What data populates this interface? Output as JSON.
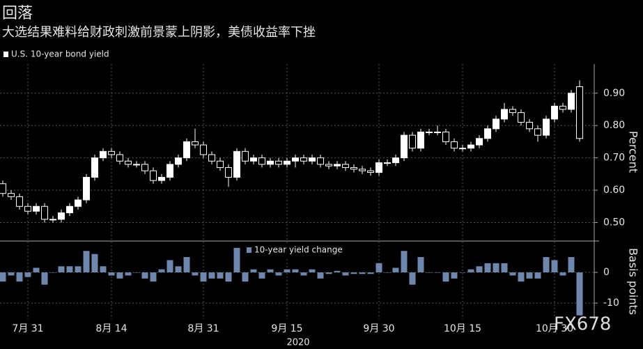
{
  "chart_data": [
    {
      "type": "candlestick",
      "title": "回落",
      "subtitle": "大选结果难料给财政刺激前景蒙上阴影，美债收益率下挫",
      "legend": "U.S. 10-year bond yield",
      "ylabel": "Percent",
      "grid": true,
      "up_color": "#ffffff",
      "down_color": "#000000",
      "categories": [
        null,
        null,
        null,
        "7月 31",
        null,
        null,
        null,
        null,
        null,
        null,
        null,
        null,
        null,
        "8月 14",
        null,
        null,
        null,
        null,
        null,
        null,
        null,
        null,
        null,
        null,
        "8月 31",
        null,
        null,
        null,
        null,
        null,
        null,
        null,
        null,
        null,
        "9月 15",
        null,
        null,
        null,
        null,
        null,
        null,
        null,
        null,
        null,
        null,
        "9月 30",
        null,
        null,
        null,
        null,
        null,
        null,
        null,
        null,
        null,
        "10月 15",
        null,
        null,
        null,
        null,
        null,
        null,
        null,
        null,
        null,
        null,
        "10月 30",
        null,
        null,
        null
      ],
      "open": [
        0.62,
        0.59,
        0.58,
        0.55,
        0.535,
        0.55,
        0.51,
        0.51,
        0.53,
        0.55,
        0.57,
        0.64,
        0.7,
        0.72,
        0.71,
        0.69,
        0.68,
        0.68,
        0.66,
        0.63,
        0.64,
        0.68,
        0.7,
        0.75,
        0.74,
        0.71,
        0.69,
        0.67,
        0.64,
        0.72,
        0.69,
        0.7,
        0.68,
        0.69,
        0.68,
        0.69,
        0.7,
        0.69,
        0.7,
        0.68,
        0.675,
        0.68,
        0.67,
        0.665,
        0.66,
        0.655,
        0.685,
        0.685,
        0.7,
        0.77,
        0.73,
        0.78,
        0.78,
        0.78,
        0.75,
        0.73,
        0.73,
        0.74,
        0.76,
        0.79,
        0.82,
        0.85,
        0.84,
        0.81,
        0.79,
        0.77,
        0.82,
        0.86,
        0.85,
        0.92
      ],
      "high": [
        0.63,
        0.6,
        0.59,
        0.56,
        0.56,
        0.56,
        0.52,
        0.54,
        0.56,
        0.58,
        0.65,
        0.71,
        0.73,
        0.73,
        0.72,
        0.7,
        0.69,
        0.69,
        0.67,
        0.65,
        0.69,
        0.71,
        0.76,
        0.79,
        0.75,
        0.72,
        0.7,
        0.68,
        0.73,
        0.73,
        0.71,
        0.71,
        0.7,
        0.7,
        0.7,
        0.71,
        0.71,
        0.71,
        0.71,
        0.69,
        0.69,
        0.69,
        0.68,
        0.675,
        0.67,
        0.695,
        0.695,
        0.71,
        0.78,
        0.78,
        0.79,
        0.79,
        0.8,
        0.79,
        0.76,
        0.74,
        0.75,
        0.77,
        0.8,
        0.83,
        0.87,
        0.86,
        0.85,
        0.82,
        0.8,
        0.83,
        0.87,
        0.87,
        0.91,
        0.94
      ],
      "low": [
        0.58,
        0.57,
        0.54,
        0.525,
        0.525,
        0.5,
        0.5,
        0.5,
        0.52,
        0.54,
        0.56,
        0.63,
        0.69,
        0.7,
        0.68,
        0.67,
        0.67,
        0.65,
        0.62,
        0.62,
        0.63,
        0.67,
        0.69,
        0.73,
        0.7,
        0.68,
        0.66,
        0.61,
        0.63,
        0.68,
        0.68,
        0.67,
        0.67,
        0.67,
        0.67,
        0.67,
        0.68,
        0.68,
        0.67,
        0.665,
        0.665,
        0.66,
        0.655,
        0.65,
        0.645,
        0.645,
        0.675,
        0.675,
        0.69,
        0.72,
        0.72,
        0.77,
        0.77,
        0.74,
        0.72,
        0.72,
        0.72,
        0.73,
        0.75,
        0.78,
        0.81,
        0.83,
        0.8,
        0.78,
        0.75,
        0.76,
        0.81,
        0.84,
        0.84,
        0.75
      ],
      "close": [
        0.59,
        0.58,
        0.55,
        0.535,
        0.55,
        0.51,
        0.51,
        0.53,
        0.55,
        0.57,
        0.64,
        0.7,
        0.72,
        0.71,
        0.69,
        0.68,
        0.68,
        0.66,
        0.63,
        0.64,
        0.68,
        0.7,
        0.75,
        0.74,
        0.71,
        0.69,
        0.67,
        0.64,
        0.72,
        0.69,
        0.7,
        0.68,
        0.69,
        0.68,
        0.69,
        0.7,
        0.69,
        0.7,
        0.68,
        0.675,
        0.68,
        0.67,
        0.665,
        0.66,
        0.655,
        0.685,
        0.685,
        0.7,
        0.77,
        0.73,
        0.78,
        0.78,
        0.78,
        0.75,
        0.73,
        0.73,
        0.74,
        0.76,
        0.79,
        0.82,
        0.85,
        0.84,
        0.81,
        0.79,
        0.77,
        0.82,
        0.86,
        0.85,
        0.9,
        0.76
      ],
      "ylim": [
        0.445,
        0.99
      ],
      "yticks": [
        {
          "value": 0.5,
          "label": "0.50"
        },
        {
          "value": 0.6,
          "label": "0.60"
        },
        {
          "value": 0.7,
          "label": "0.70"
        },
        {
          "value": 0.8,
          "label": "0.80"
        },
        {
          "value": 0.9,
          "label": "0.90"
        }
      ]
    },
    {
      "type": "bar",
      "ylabel": "Basis points",
      "xlabel": "2020",
      "grid": true,
      "series": [
        {
          "name": "10-year yield change",
          "color": "#6f86ad",
          "values": [
            -3,
            -1,
            -3,
            -1.5,
            1.5,
            -4,
            0,
            2,
            2,
            2,
            7,
            6,
            2,
            -1,
            -2,
            -1,
            0,
            -2,
            -3,
            1,
            4,
            2,
            5,
            -1,
            -3,
            -2,
            -2,
            -3,
            8,
            -3,
            1,
            -2,
            1,
            -1,
            1,
            1,
            -1,
            1,
            -2,
            -0.5,
            0.5,
            -1,
            -0.5,
            -0.5,
            -0.5,
            3,
            0,
            1.5,
            7,
            -4,
            5,
            0,
            0,
            -3,
            -2,
            0,
            1,
            2,
            3,
            3,
            3,
            -1,
            -3,
            -2,
            -2,
            5,
            4,
            -1,
            5,
            -14
          ]
        }
      ],
      "ylim": [
        -15.2,
        10
      ],
      "yticks": [
        -10,
        0
      ]
    }
  ],
  "watermark": "FX678"
}
